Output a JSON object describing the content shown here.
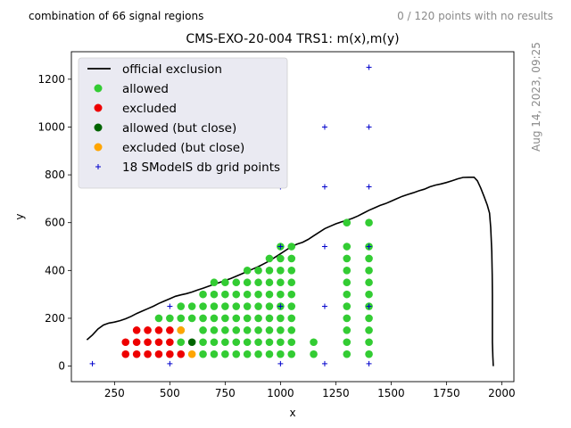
{
  "header": {
    "left_text": "combination of 66 signal regions",
    "right_text": "0 / 120 points with no results",
    "date_text": "Aug 14, 2023, 09:25"
  },
  "colors": {
    "allowed": "#33cc33",
    "excluded": "#ee0000",
    "allowed_close": "#006400",
    "excluded_close": "#ffa500",
    "grid_points": "#0000cc",
    "official_exclusion": "#000000",
    "legend_bg": "#eaeaf2"
  },
  "chart_data": {
    "type": "scatter",
    "title": "CMS-EXO-20-004 TRS1: m(x),m(y)",
    "xlabel": "x",
    "ylabel": "y",
    "xlim": [
      55,
      2055
    ],
    "ylim": [
      -65,
      1315
    ],
    "xticks": [
      250,
      500,
      750,
      1000,
      1250,
      1500,
      1750,
      2000
    ],
    "yticks": [
      0,
      200,
      400,
      600,
      800,
      1000,
      1200
    ],
    "grid": false,
    "legend_position": "top-left",
    "legend": [
      {
        "label": "official exclusion",
        "marker": "line",
        "color_key": "official_exclusion"
      },
      {
        "label": "allowed",
        "marker": "dot",
        "color_key": "allowed"
      },
      {
        "label": "excluded",
        "marker": "dot",
        "color_key": "excluded"
      },
      {
        "label": "allowed (but close)",
        "marker": "dot",
        "color_key": "allowed_close"
      },
      {
        "label": "excluded (but close)",
        "marker": "dot",
        "color_key": "excluded_close"
      },
      {
        "label": "18 SModelS db grid points",
        "marker": "plus",
        "color_key": "grid_points"
      }
    ],
    "official_exclusion": [
      [
        125,
        110
      ],
      [
        150,
        130
      ],
      [
        175,
        155
      ],
      [
        200,
        172
      ],
      [
        225,
        180
      ],
      [
        250,
        184
      ],
      [
        275,
        190
      ],
      [
        300,
        198
      ],
      [
        325,
        208
      ],
      [
        350,
        220
      ],
      [
        375,
        230
      ],
      [
        400,
        240
      ],
      [
        425,
        250
      ],
      [
        450,
        262
      ],
      [
        475,
        272
      ],
      [
        500,
        282
      ],
      [
        525,
        292
      ],
      [
        550,
        298
      ],
      [
        575,
        303
      ],
      [
        600,
        310
      ],
      [
        625,
        318
      ],
      [
        650,
        326
      ],
      [
        675,
        334
      ],
      [
        700,
        342
      ],
      [
        725,
        350
      ],
      [
        750,
        358
      ],
      [
        775,
        366
      ],
      [
        800,
        376
      ],
      [
        825,
        386
      ],
      [
        850,
        396
      ],
      [
        875,
        406
      ],
      [
        900,
        416
      ],
      [
        925,
        428
      ],
      [
        950,
        440
      ],
      [
        975,
        455
      ],
      [
        1000,
        470
      ],
      [
        1025,
        485
      ],
      [
        1050,
        500
      ],
      [
        1075,
        510
      ],
      [
        1100,
        518
      ],
      [
        1125,
        530
      ],
      [
        1150,
        545
      ],
      [
        1175,
        560
      ],
      [
        1200,
        575
      ],
      [
        1225,
        585
      ],
      [
        1250,
        595
      ],
      [
        1275,
        603
      ],
      [
        1300,
        610
      ],
      [
        1325,
        618
      ],
      [
        1350,
        628
      ],
      [
        1375,
        640
      ],
      [
        1400,
        652
      ],
      [
        1425,
        662
      ],
      [
        1450,
        672
      ],
      [
        1475,
        680
      ],
      [
        1500,
        690
      ],
      [
        1525,
        700
      ],
      [
        1550,
        710
      ],
      [
        1575,
        718
      ],
      [
        1600,
        725
      ],
      [
        1625,
        733
      ],
      [
        1650,
        740
      ],
      [
        1675,
        750
      ],
      [
        1700,
        757
      ],
      [
        1725,
        762
      ],
      [
        1750,
        768
      ],
      [
        1775,
        775
      ],
      [
        1800,
        783
      ],
      [
        1825,
        789
      ],
      [
        1850,
        790
      ],
      [
        1875,
        790
      ],
      [
        1890,
        775
      ],
      [
        1905,
        745
      ],
      [
        1920,
        710
      ],
      [
        1935,
        673
      ],
      [
        1945,
        640
      ],
      [
        1950,
        580
      ],
      [
        1955,
        480
      ],
      [
        1957,
        380
      ],
      [
        1958,
        300
      ],
      [
        1958,
        200
      ],
      [
        1958,
        100
      ],
      [
        1960,
        40
      ],
      [
        1962,
        0
      ]
    ],
    "allowed": [
      [
        450,
        200
      ],
      [
        500,
        200
      ],
      [
        550,
        200
      ],
      [
        600,
        200
      ],
      [
        650,
        200
      ],
      [
        700,
        200
      ],
      [
        750,
        200
      ],
      [
        800,
        200
      ],
      [
        850,
        200
      ],
      [
        900,
        200
      ],
      [
        950,
        200
      ],
      [
        1000,
        200
      ],
      [
        1050,
        200
      ],
      [
        550,
        250
      ],
      [
        600,
        250
      ],
      [
        650,
        250
      ],
      [
        700,
        250
      ],
      [
        750,
        250
      ],
      [
        800,
        250
      ],
      [
        850,
        250
      ],
      [
        900,
        250
      ],
      [
        950,
        250
      ],
      [
        1000,
        250
      ],
      [
        1050,
        250
      ],
      [
        650,
        300
      ],
      [
        700,
        300
      ],
      [
        750,
        300
      ],
      [
        800,
        300
      ],
      [
        850,
        300
      ],
      [
        900,
        300
      ],
      [
        950,
        300
      ],
      [
        1000,
        300
      ],
      [
        1050,
        300
      ],
      [
        700,
        350
      ],
      [
        750,
        350
      ],
      [
        800,
        350
      ],
      [
        850,
        350
      ],
      [
        900,
        350
      ],
      [
        950,
        350
      ],
      [
        1000,
        350
      ],
      [
        1050,
        350
      ],
      [
        850,
        400
      ],
      [
        900,
        400
      ],
      [
        950,
        400
      ],
      [
        1000,
        400
      ],
      [
        1050,
        400
      ],
      [
        950,
        450
      ],
      [
        1000,
        450
      ],
      [
        1050,
        450
      ],
      [
        1000,
        500
      ],
      [
        1050,
        500
      ],
      [
        550,
        150
      ],
      [
        650,
        150
      ],
      [
        700,
        150
      ],
      [
        750,
        150
      ],
      [
        800,
        150
      ],
      [
        850,
        150
      ],
      [
        900,
        150
      ],
      [
        950,
        150
      ],
      [
        1000,
        150
      ],
      [
        1050,
        150
      ],
      [
        550,
        100
      ],
      [
        650,
        100
      ],
      [
        700,
        100
      ],
      [
        750,
        100
      ],
      [
        800,
        100
      ],
      [
        850,
        100
      ],
      [
        900,
        100
      ],
      [
        950,
        100
      ],
      [
        1000,
        100
      ],
      [
        1050,
        100
      ],
      [
        1150,
        100
      ],
      [
        650,
        50
      ],
      [
        700,
        50
      ],
      [
        750,
        50
      ],
      [
        800,
        50
      ],
      [
        850,
        50
      ],
      [
        900,
        50
      ],
      [
        950,
        50
      ],
      [
        1000,
        50
      ],
      [
        1050,
        50
      ],
      [
        1150,
        50
      ],
      [
        1300,
        50
      ],
      [
        1300,
        100
      ],
      [
        1300,
        150
      ],
      [
        1300,
        200
      ],
      [
        1300,
        250
      ],
      [
        1300,
        300
      ],
      [
        1300,
        350
      ],
      [
        1300,
        400
      ],
      [
        1300,
        450
      ],
      [
        1300,
        500
      ],
      [
        1300,
        600
      ],
      [
        1400,
        50
      ],
      [
        1400,
        100
      ],
      [
        1400,
        150
      ],
      [
        1400,
        200
      ],
      [
        1400,
        250
      ],
      [
        1400,
        300
      ],
      [
        1400,
        350
      ],
      [
        1400,
        400
      ],
      [
        1400,
        450
      ],
      [
        1400,
        500
      ],
      [
        1400,
        600
      ]
    ],
    "excluded": [
      [
        300,
        50
      ],
      [
        350,
        50
      ],
      [
        400,
        50
      ],
      [
        450,
        50
      ],
      [
        500,
        50
      ],
      [
        550,
        50
      ],
      [
        300,
        100
      ],
      [
        350,
        100
      ],
      [
        400,
        100
      ],
      [
        450,
        100
      ],
      [
        500,
        100
      ],
      [
        350,
        150
      ],
      [
        400,
        150
      ],
      [
        450,
        150
      ],
      [
        500,
        150
      ]
    ],
    "allowed_close": [
      [
        600,
        100
      ]
    ],
    "excluded_close": [
      [
        550,
        150
      ],
      [
        600,
        50
      ]
    ],
    "grid_points": [
      [
        150,
        10
      ],
      [
        500,
        10
      ],
      [
        1000,
        10
      ],
      [
        1200,
        10
      ],
      [
        1400,
        10
      ],
      [
        500,
        250
      ],
      [
        1000,
        250
      ],
      [
        1200,
        250
      ],
      [
        1400,
        250
      ],
      [
        1000,
        500
      ],
      [
        1200,
        500
      ],
      [
        1400,
        500
      ],
      [
        1000,
        750
      ],
      [
        1200,
        750
      ],
      [
        1400,
        750
      ],
      [
        1200,
        1000
      ],
      [
        1400,
        1000
      ],
      [
        1400,
        1250
      ]
    ]
  }
}
